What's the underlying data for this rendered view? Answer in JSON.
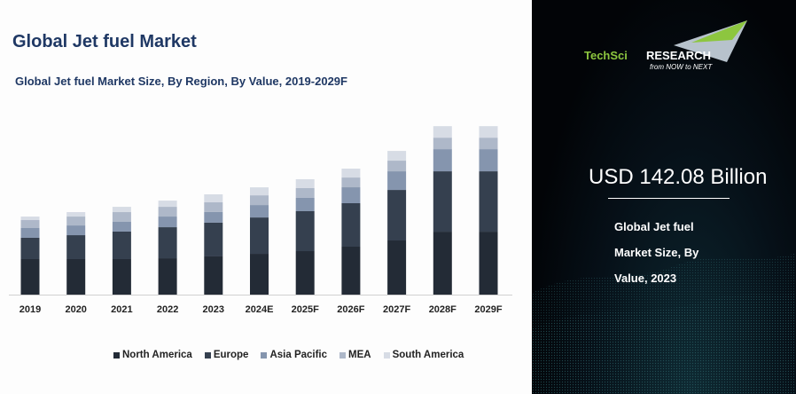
{
  "header": {
    "title": "Global Jet fuel Market"
  },
  "brand": {
    "name_part1": "TechSci",
    "name_part2": "Research",
    "tagline": "from NOW to NEXT",
    "green": "#8dc63f"
  },
  "highlight": {
    "value": "USD 142.08 Billion",
    "desc_lines": [
      "Global Jet fuel",
      "Market Size, By",
      "Value, 2023"
    ]
  },
  "chart_data": {
    "type": "bar",
    "stacked": true,
    "title": "Global Jet fuel Market Size, By Region, By Value, 2019-2029F",
    "xlabel": "",
    "ylabel": "",
    "grid": false,
    "legend_position": "bottom",
    "categories": [
      "2019",
      "2020",
      "2021",
      "2022",
      "2023",
      "2024E",
      "2025F",
      "2026F",
      "2027F",
      "2028F",
      "2029F"
    ],
    "series": [
      {
        "name": "North America",
        "color": "#232b36",
        "values": [
          50.3,
          50.3,
          50.3,
          51.5,
          54.1,
          57.8,
          61.6,
          67.9,
          76.7,
          89.2,
          89.2
        ]
      },
      {
        "name": "Europe",
        "color": "#35404f",
        "values": [
          30.2,
          33.9,
          39.0,
          44.0,
          47.8,
          51.5,
          56.6,
          61.6,
          71.6,
          85.5,
          85.5
        ]
      },
      {
        "name": "Asia Pacific",
        "color": "#8595ae",
        "values": [
          13.8,
          13.8,
          13.8,
          15.1,
          15.1,
          17.6,
          18.9,
          22.6,
          26.4,
          31.4,
          31.4
        ]
      },
      {
        "name": "MEA",
        "color": "#aeb8c9",
        "values": [
          11.3,
          12.6,
          13.8,
          13.8,
          13.8,
          13.8,
          13.8,
          13.8,
          15.1,
          16.3,
          16.3
        ]
      },
      {
        "name": "South America",
        "color": "#d7dce5",
        "values": [
          5.0,
          6.3,
          7.5,
          8.8,
          11.3,
          11.3,
          12.6,
          12.6,
          13.8,
          16.3,
          16.3
        ]
      }
    ]
  }
}
